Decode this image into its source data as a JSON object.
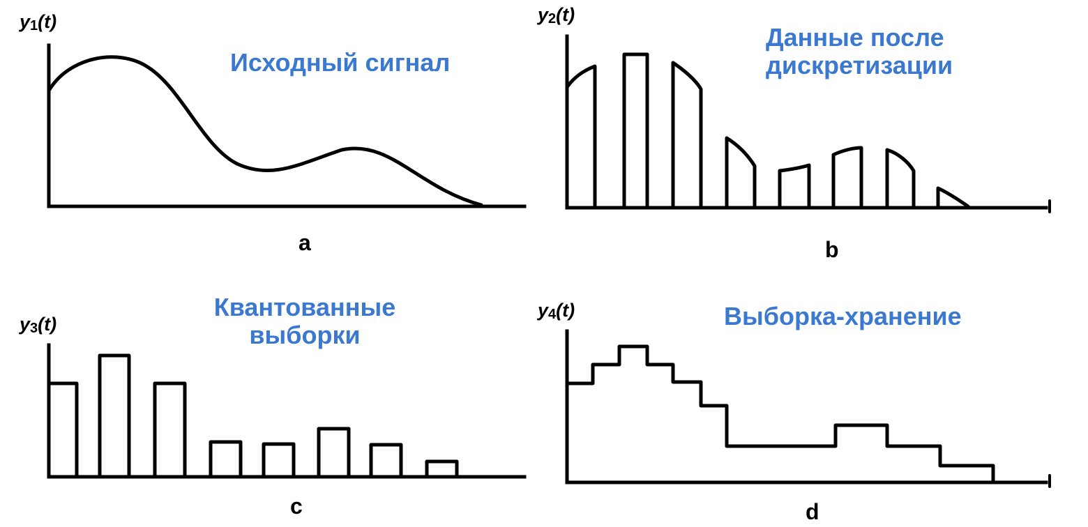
{
  "panels": {
    "a": {
      "y_name": "y",
      "y_sub": "1",
      "y_arg": "(t)",
      "caption": "Исходный сигнал",
      "letter": "a"
    },
    "b": {
      "y_name": "y",
      "y_sub": "2",
      "y_arg": "(t)",
      "caption_line1": "Данные после",
      "caption_line2": "дискретизации",
      "letter": "b"
    },
    "c": {
      "y_name": "y",
      "y_sub": "3",
      "y_arg": "(t)",
      "caption_line1": "Квантованные",
      "caption_line2": "выборки",
      "letter": "c"
    },
    "d": {
      "y_name": "y",
      "y_sub": "4",
      "y_arg": "(t)",
      "caption": "Выборка-хранение",
      "letter": "d"
    }
  },
  "colors": {
    "caption": "#3b78d0",
    "lines": "#000000"
  }
}
